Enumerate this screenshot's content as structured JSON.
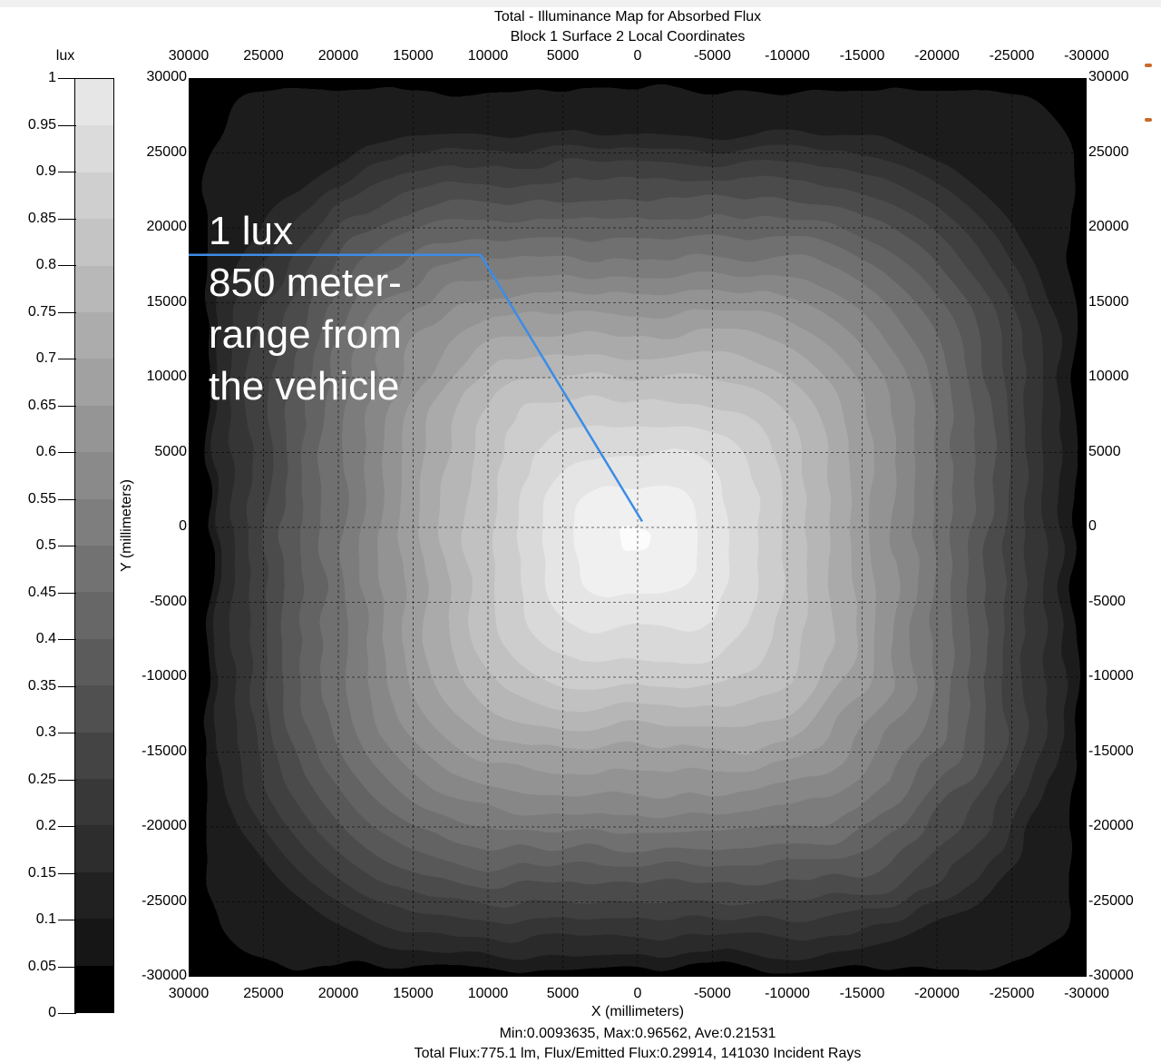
{
  "chart_data": {
    "type": "heatmap",
    "title": [
      "Total - Illuminance Map for Absorbed Flux",
      "Block 1 Surface 2    Local Coordinates"
    ],
    "xlabel": "X (millimeters)",
    "ylabel": "Y (millimeters)",
    "xlim": [
      30000,
      -30000
    ],
    "ylim": [
      -30000,
      30000
    ],
    "x_ticks": [
      "30000",
      "25000",
      "20000",
      "15000",
      "10000",
      "5000",
      "0",
      "-5000",
      "-10000",
      "-15000",
      "-20000",
      "-25000",
      "-30000"
    ],
    "y_ticks": [
      "30000",
      "25000",
      "20000",
      "15000",
      "10000",
      "5000",
      "0",
      "-5000",
      "-10000",
      "-15000",
      "-20000",
      "-25000",
      "-30000"
    ],
    "grid": true,
    "colorbar": {
      "unit": "lux",
      "ticks": [
        "1",
        "0.95",
        "0.9",
        "0.85",
        "0.8",
        "0.75",
        "0.7",
        "0.65",
        "0.6",
        "0.55",
        "0.5",
        "0.45",
        "0.4",
        "0.35",
        "0.3",
        "0.25",
        "0.2",
        "0.15",
        "0.1",
        "0.05",
        "0"
      ],
      "range": [
        0,
        1
      ],
      "colormap": "grayscale"
    },
    "peak": {
      "x": 0,
      "y": -1000,
      "value": 0.96562
    },
    "stats": {
      "line1": "Min:0.0093635, Max:0.96562, Ave:0.21531",
      "line2": "Total Flux:775.1 lm, Flux/Emitted Flux:0.29914, 141030 Incident Rays"
    },
    "annotation": {
      "lines": [
        "1 lux",
        "850 meter-",
        "range from",
        "the vehicle"
      ],
      "color": "#3c8ce6"
    }
  }
}
